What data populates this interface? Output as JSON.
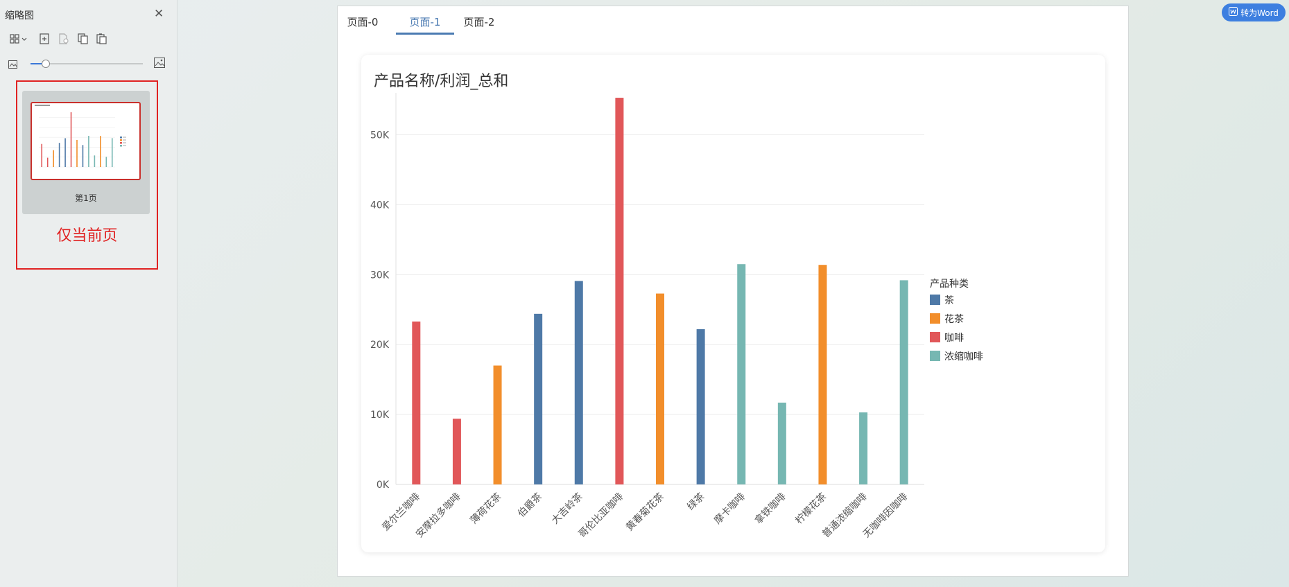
{
  "sidebar": {
    "title": "缩略图",
    "tools": [
      "layout-grid-icon",
      "add-page-icon",
      "insert-page-icon",
      "copy-page-icon",
      "paste-page-icon"
    ],
    "zoom_level": 0.13,
    "page_label": "第1页",
    "annotation": "仅当前页"
  },
  "tabs": [
    "页面-0",
    "页面-1",
    "页面-2"
  ],
  "active_tab": 1,
  "convert_button": {
    "label": "转为Word",
    "icon": "word-doc-icon",
    "color": "#3d7fe0"
  },
  "chart_data": {
    "type": "bar",
    "title": "产品名称/利润_总和",
    "categories": [
      "爱尔兰咖啡",
      "安摩拉多咖啡",
      "薄荷花茶",
      "伯爵茶",
      "大吉岭茶",
      "哥伦比亚咖啡",
      "黄春菊花茶",
      "绿茶",
      "摩卡咖啡",
      "拿铁咖啡",
      "柠檬花茶",
      "普通浓缩咖啡",
      "无咖啡因咖啡"
    ],
    "values": [
      23300,
      9400,
      17000,
      24400,
      29100,
      55300,
      27300,
      22200,
      31500,
      11700,
      31400,
      10300,
      29200
    ],
    "category_series": [
      "咖啡",
      "咖啡",
      "花茶",
      "茶",
      "茶",
      "咖啡",
      "花茶",
      "茶",
      "浓缩咖啡",
      "浓缩咖啡",
      "花茶",
      "浓缩咖啡",
      "浓缩咖啡"
    ],
    "legend_title": "产品种类",
    "legend_position": "right",
    "series": [
      {
        "name": "茶",
        "color": "#4e79a7"
      },
      {
        "name": "花茶",
        "color": "#f28e2b"
      },
      {
        "name": "咖啡",
        "color": "#e15759"
      },
      {
        "name": "浓缩咖啡",
        "color": "#76b7b2"
      }
    ],
    "y_ticks": [
      0,
      10000,
      20000,
      30000,
      40000,
      50000
    ],
    "y_tick_labels": [
      "0K",
      "10K",
      "20K",
      "30K",
      "40K",
      "50K"
    ],
    "ylim": [
      0,
      56000
    ],
    "grid": true
  }
}
